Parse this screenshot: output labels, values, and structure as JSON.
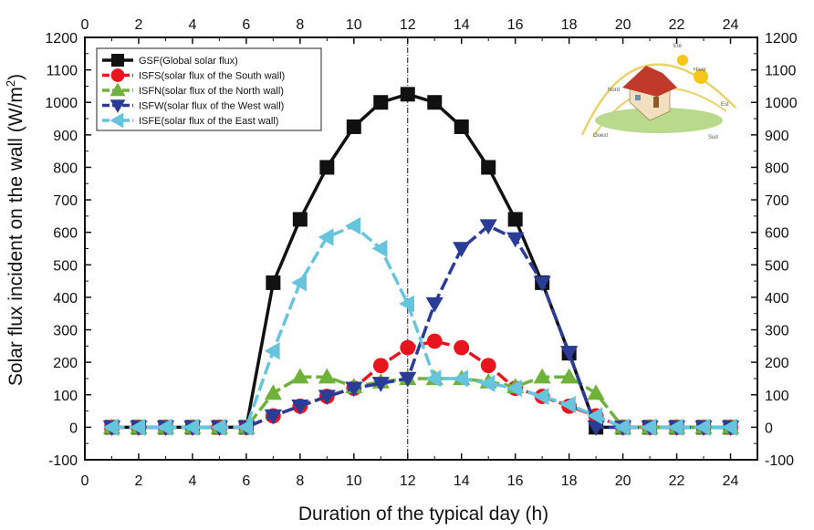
{
  "chart_data": {
    "type": "line",
    "title": "",
    "xlabel": "Duration of the typical day (h)",
    "ylabel": "Solar flux incident on the wall (W/m2)",
    "ylabel_main": "Solar flux incident on the wall (W/m",
    "ylabel_sup": "2",
    "ylabel_close": ")",
    "xlim": [
      0,
      25
    ],
    "ylim": [
      -100,
      1200
    ],
    "xticks": [
      0,
      2,
      4,
      6,
      8,
      10,
      12,
      14,
      16,
      18,
      20,
      22,
      24
    ],
    "yticks": [
      -100,
      0,
      100,
      200,
      300,
      400,
      500,
      600,
      700,
      800,
      900,
      1000,
      1100,
      1200
    ],
    "vline_x": 12,
    "legend_position": "top-left",
    "x": [
      1,
      2,
      3,
      4,
      5,
      6,
      7,
      8,
      9,
      10,
      11,
      12,
      13,
      14,
      15,
      16,
      17,
      18,
      19,
      20,
      21,
      22,
      23,
      24
    ],
    "series": [
      {
        "name": "GSF(Global solar flux)",
        "color": "#111111",
        "marker": "square",
        "dash": "solid",
        "values": [
          0,
          0,
          0,
          0,
          0,
          0,
          445,
          640,
          800,
          925,
          1000,
          1025,
          1000,
          925,
          800,
          640,
          445,
          228,
          0,
          0,
          0,
          0,
          0,
          0
        ]
      },
      {
        "name": "ISFS(solar flux of the South wall)",
        "color": "#e8141e",
        "marker": "circle",
        "dash": "dash",
        "values": [
          0,
          0,
          0,
          0,
          0,
          0,
          35,
          65,
          95,
          120,
          190,
          245,
          265,
          245,
          190,
          120,
          95,
          65,
          35,
          0,
          0,
          0,
          0,
          0
        ]
      },
      {
        "name": "ISFN(solar flux of the North wall)",
        "color": "#6fb23a",
        "marker": "triangle-up",
        "dash": "dash",
        "values": [
          0,
          0,
          0,
          0,
          0,
          0,
          105,
          155,
          155,
          125,
          140,
          150,
          150,
          150,
          140,
          125,
          155,
          155,
          105,
          0,
          0,
          0,
          0,
          0
        ]
      },
      {
        "name": "ISFW(solar flux of the West wall)",
        "color": "#2a3c96",
        "marker": "triangle-down",
        "dash": "dash",
        "values": [
          0,
          0,
          0,
          0,
          0,
          0,
          35,
          65,
          95,
          120,
          135,
          150,
          380,
          550,
          620,
          580,
          445,
          230,
          0,
          0,
          0,
          0,
          0,
          0
        ]
      },
      {
        "name": "ISFE(solar flux of the East wall)",
        "color": "#66c4dc",
        "marker": "triangle-left",
        "dash": "dash",
        "values": [
          0,
          0,
          0,
          0,
          0,
          0,
          235,
          445,
          585,
          620,
          550,
          380,
          150,
          150,
          135,
          120,
          95,
          70,
          35,
          0,
          0,
          0,
          0,
          0
        ]
      }
    ]
  },
  "inset": {
    "labels": {
      "ete": "Eté",
      "hiver": "Hiver",
      "nord": "Nord",
      "est": "Est",
      "ouest": "Ouest",
      "sud": "Sud"
    }
  }
}
